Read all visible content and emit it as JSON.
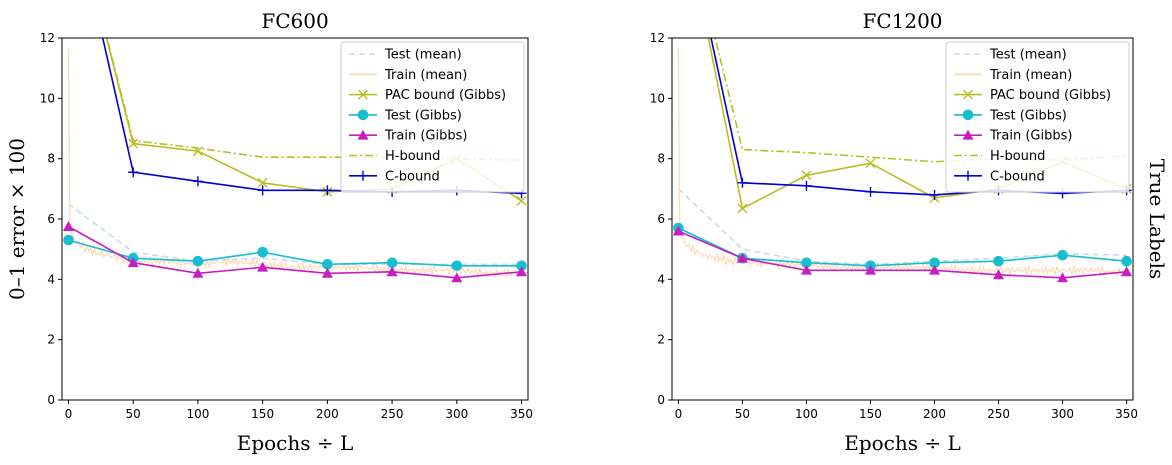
{
  "figure": {
    "ylabel": "0–1 error × 100",
    "right_label": "True Labels"
  },
  "chart_data": [
    {
      "type": "line",
      "title": "FC600",
      "xlabel": "Epochs ÷ L",
      "ylabel": "0–1 error × 100",
      "xlim": [
        -5,
        355
      ],
      "ylim": [
        0,
        12
      ],
      "xticks": [
        0,
        50,
        100,
        150,
        200,
        250,
        300,
        350
      ],
      "yticks": [
        0,
        2,
        4,
        6,
        8,
        10,
        12
      ],
      "grid": false,
      "legend_position": "top-right",
      "series": [
        {
          "name": "Test (mean)",
          "color": "#c6dbef",
          "dash": "6,4",
          "marker": "none",
          "x": [
            0,
            50,
            100,
            150,
            200,
            250,
            300,
            350
          ],
          "y": [
            6.5,
            4.9,
            4.6,
            4.7,
            4.5,
            4.5,
            4.5,
            4.5
          ]
        },
        {
          "name": "Train (mean)",
          "color": "#fdd9b5",
          "dash": "",
          "marker": "none",
          "noisy": true,
          "x": [
            0,
            1,
            2,
            5,
            10,
            20,
            30,
            40,
            50,
            75,
            100,
            125,
            150,
            175,
            200,
            225,
            250,
            275,
            300,
            325,
            350
          ],
          "y": [
            11.6,
            6.0,
            5.4,
            5.3,
            5.1,
            4.9,
            4.8,
            4.7,
            4.6,
            4.6,
            4.5,
            4.6,
            4.5,
            4.4,
            4.4,
            4.4,
            4.3,
            4.3,
            4.3,
            4.2,
            4.2
          ]
        },
        {
          "name": "PAC bound (Gibbs)",
          "color": "#bcbd22",
          "dash": "",
          "marker": "x",
          "x": [
            0,
            50,
            100,
            150,
            200,
            250,
            300,
            350
          ],
          "y": [
            17,
            8.5,
            8.25,
            7.2,
            6.9,
            7.0,
            8.0,
            6.6
          ]
        },
        {
          "name": "Test (Gibbs)",
          "color": "#17becf",
          "dash": "",
          "marker": "circle",
          "x": [
            0,
            50,
            100,
            150,
            200,
            250,
            300,
            350
          ],
          "y": [
            5.3,
            4.7,
            4.6,
            4.9,
            4.5,
            4.55,
            4.45,
            4.45
          ]
        },
        {
          "name": "Train (Gibbs)",
          "color": "#c71fbf",
          "dash": "",
          "marker": "triangle",
          "x": [
            0,
            50,
            100,
            150,
            200,
            250,
            300,
            350
          ],
          "y": [
            5.75,
            4.55,
            4.2,
            4.4,
            4.2,
            4.25,
            4.05,
            4.25
          ]
        },
        {
          "name": "H-bound",
          "color": "#bcbd22",
          "dash": "8,3,2,3",
          "marker": "none",
          "x": [
            0,
            50,
            100,
            150,
            200,
            250,
            300,
            350
          ],
          "y": [
            17,
            8.6,
            8.35,
            8.05,
            8.05,
            8.05,
            8.0,
            7.95
          ]
        },
        {
          "name": "C-bound",
          "color": "#0000dd",
          "dash": "",
          "marker": "plus",
          "x": [
            0,
            50,
            100,
            150,
            200,
            250,
            300,
            350
          ],
          "y": [
            17,
            7.55,
            7.25,
            6.95,
            6.95,
            6.9,
            6.95,
            6.85
          ]
        }
      ]
    },
    {
      "type": "line",
      "title": "FC1200",
      "xlabel": "Epochs ÷ L",
      "ylabel": "",
      "xlim": [
        -5,
        355
      ],
      "ylim": [
        0,
        12
      ],
      "xticks": [
        0,
        50,
        100,
        150,
        200,
        250,
        300,
        350
      ],
      "yticks": [
        0,
        2,
        4,
        6,
        8,
        10,
        12
      ],
      "grid": false,
      "legend_position": "top-right",
      "series": [
        {
          "name": "Test (mean)",
          "color": "#c6dbef",
          "dash": "6,4",
          "marker": "none",
          "x": [
            0,
            50,
            100,
            150,
            200,
            250,
            300,
            350
          ],
          "y": [
            7.0,
            5.0,
            4.6,
            4.5,
            4.6,
            4.7,
            4.85,
            4.8
          ]
        },
        {
          "name": "Train (mean)",
          "color": "#fdd9b5",
          "dash": "",
          "marker": "none",
          "noisy": true,
          "x": [
            0,
            1,
            2,
            5,
            10,
            20,
            30,
            40,
            50,
            75,
            100,
            125,
            150,
            175,
            200,
            225,
            250,
            275,
            300,
            325,
            350
          ],
          "y": [
            11.7,
            6.0,
            5.5,
            5.2,
            5.0,
            4.8,
            4.7,
            4.6,
            4.6,
            4.5,
            4.5,
            4.4,
            4.4,
            4.4,
            4.4,
            4.3,
            4.3,
            4.3,
            4.3,
            4.3,
            4.2
          ]
        },
        {
          "name": "PAC bound (Gibbs)",
          "color": "#bcbd22",
          "dash": "",
          "marker": "x",
          "x": [
            0,
            50,
            100,
            150,
            200,
            250,
            300,
            350
          ],
          "y": [
            17,
            6.35,
            7.45,
            7.85,
            6.7,
            7.0,
            7.9,
            7.0
          ]
        },
        {
          "name": "Test (Gibbs)",
          "color": "#17becf",
          "dash": "",
          "marker": "circle",
          "x": [
            0,
            50,
            100,
            150,
            200,
            250,
            300,
            350
          ],
          "y": [
            5.7,
            4.7,
            4.55,
            4.45,
            4.55,
            4.6,
            4.8,
            4.6
          ]
        },
        {
          "name": "Train (Gibbs)",
          "color": "#c71fbf",
          "dash": "",
          "marker": "triangle",
          "x": [
            0,
            50,
            100,
            150,
            200,
            250,
            300,
            350
          ],
          "y": [
            5.6,
            4.7,
            4.3,
            4.3,
            4.3,
            4.15,
            4.05,
            4.25
          ]
        },
        {
          "name": "H-bound",
          "color": "#bcbd22",
          "dash": "8,3,2,3",
          "marker": "none",
          "x": [
            0,
            50,
            100,
            150,
            200,
            250,
            300,
            350
          ],
          "y": [
            17,
            8.3,
            8.2,
            8.05,
            7.9,
            8.0,
            7.95,
            8.1
          ]
        },
        {
          "name": "C-bound",
          "color": "#0000dd",
          "dash": "",
          "marker": "plus",
          "x": [
            0,
            50,
            100,
            150,
            200,
            250,
            300,
            350
          ],
          "y": [
            17,
            7.2,
            7.1,
            6.9,
            6.8,
            6.95,
            6.85,
            6.95
          ]
        }
      ]
    }
  ]
}
